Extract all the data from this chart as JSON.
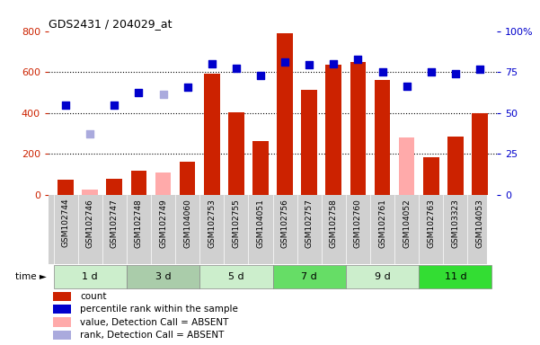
{
  "title": "GDS2431 / 204029_at",
  "samples": [
    "GSM102744",
    "GSM102746",
    "GSM102747",
    "GSM102748",
    "GSM102749",
    "GSM104060",
    "GSM102753",
    "GSM102755",
    "GSM104051",
    "GSM102756",
    "GSM102757",
    "GSM102758",
    "GSM102760",
    "GSM102761",
    "GSM104052",
    "GSM102763",
    "GSM103323",
    "GSM104053"
  ],
  "groups": [
    {
      "label": "1 d",
      "indices": [
        0,
        1,
        2
      ]
    },
    {
      "label": "3 d",
      "indices": [
        3,
        4,
        5
      ]
    },
    {
      "label": "5 d",
      "indices": [
        6,
        7,
        8
      ]
    },
    {
      "label": "7 d",
      "indices": [
        9,
        10,
        11
      ]
    },
    {
      "label": "9 d",
      "indices": [
        12,
        13,
        14
      ]
    },
    {
      "label": "11 d",
      "indices": [
        15,
        16,
        17
      ]
    }
  ],
  "group_colors": [
    "#cceecc",
    "#aaccaa",
    "#cceecc",
    "#66dd66",
    "#cceecc",
    "#33dd33"
  ],
  "bar_values": [
    75,
    25,
    80,
    120,
    110,
    160,
    590,
    405,
    265,
    790,
    515,
    635,
    650,
    560,
    280,
    185,
    285,
    400
  ],
  "bar_absent": [
    false,
    true,
    false,
    false,
    true,
    false,
    false,
    false,
    false,
    false,
    false,
    false,
    false,
    false,
    true,
    false,
    false,
    false
  ],
  "rank_values": [
    440,
    300,
    440,
    500,
    490,
    525,
    640,
    620,
    585,
    650,
    635,
    640,
    660,
    600,
    530,
    600,
    590,
    615
  ],
  "rank_absent": [
    false,
    true,
    false,
    false,
    true,
    false,
    false,
    false,
    false,
    false,
    false,
    false,
    false,
    false,
    false,
    false,
    false,
    false
  ],
  "ylim_left": [
    0,
    800
  ],
  "ylim_right": [
    0,
    100
  ],
  "yticks_left": [
    0,
    200,
    400,
    600,
    800
  ],
  "yticks_right": [
    0,
    25,
    50,
    75,
    100
  ],
  "bar_color_present": "#cc2200",
  "bar_color_absent": "#ffaaaa",
  "rank_color_present": "#0000cc",
  "rank_color_absent": "#aaaadd",
  "tick_label_color_left": "#cc2200",
  "tick_label_color_right": "#0000cc",
  "legend_items": [
    {
      "label": "count",
      "color": "#cc2200"
    },
    {
      "label": "percentile rank within the sample",
      "color": "#0000cc"
    },
    {
      "label": "value, Detection Call = ABSENT",
      "color": "#ffaaaa"
    },
    {
      "label": "rank, Detection Call = ABSENT",
      "color": "#aaaadd"
    }
  ]
}
